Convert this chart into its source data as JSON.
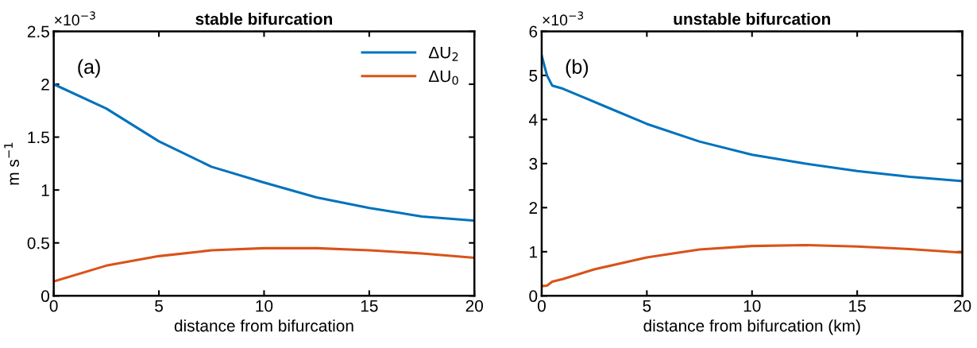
{
  "chart_data": [
    {
      "type": "line",
      "title": "stable bifurcation",
      "xlabel": "distance from bifurcation",
      "ylabel": "m s$^{−1}$",
      "annotations": [
        "(a)",
        "×10$^{−3}$"
      ],
      "xlim": [
        0,
        20
      ],
      "xticks": [
        0,
        5,
        10,
        15,
        20
      ],
      "ylim": [
        0,
        2.5
      ],
      "yticks": [
        0,
        0.5,
        1,
        1.5,
        2,
        2.5
      ],
      "grid": false,
      "legend": "top right",
      "series": [
        {
          "name": "ΔU$_{2}$",
          "color": "#0072bd",
          "x": [
            0,
            2.5,
            5,
            7.5,
            10,
            12.5,
            15,
            17.5,
            20
          ],
          "values": [
            2.0,
            1.77,
            1.46,
            1.22,
            1.07,
            0.93,
            0.83,
            0.75,
            0.71
          ]
        },
        {
          "name": "ΔU$_{0}$",
          "color": "#d95319",
          "x": [
            0,
            2.5,
            5,
            7.5,
            10,
            12.5,
            15,
            17.5,
            20
          ],
          "values": [
            0.135,
            0.285,
            0.375,
            0.43,
            0.45,
            0.45,
            0.43,
            0.4,
            0.36
          ]
        }
      ]
    },
    {
      "type": "line",
      "title": "unstable bifurcation",
      "xlabel": "distance from bifurcation (km)",
      "annotations": [
        "(b)",
        "×10$^{−3}$"
      ],
      "xlim": [
        0,
        20
      ],
      "xticks": [
        0,
        5,
        10,
        15,
        20
      ],
      "ylim": [
        0,
        6
      ],
      "yticks": [
        0,
        1,
        2,
        3,
        4,
        5,
        6
      ],
      "grid": false,
      "series": [
        {
          "color": "#0072bd",
          "x": [
            0,
            0.25,
            0.5,
            1,
            2,
            3,
            5,
            7.5,
            10,
            12.5,
            15,
            17.5,
            20
          ],
          "values": [
            5.45,
            5.0,
            4.77,
            4.7,
            4.5,
            4.3,
            3.9,
            3.5,
            3.2,
            3.0,
            2.83,
            2.7,
            2.6
          ]
        },
        {
          "color": "#d95319",
          "x": [
            0,
            0.25,
            0.5,
            1,
            2.5,
            5,
            7.5,
            10,
            12.5,
            15,
            17.5,
            20
          ],
          "values": [
            0.22,
            0.23,
            0.32,
            0.38,
            0.6,
            0.87,
            1.05,
            1.13,
            1.15,
            1.12,
            1.06,
            0.98
          ]
        }
      ]
    }
  ]
}
